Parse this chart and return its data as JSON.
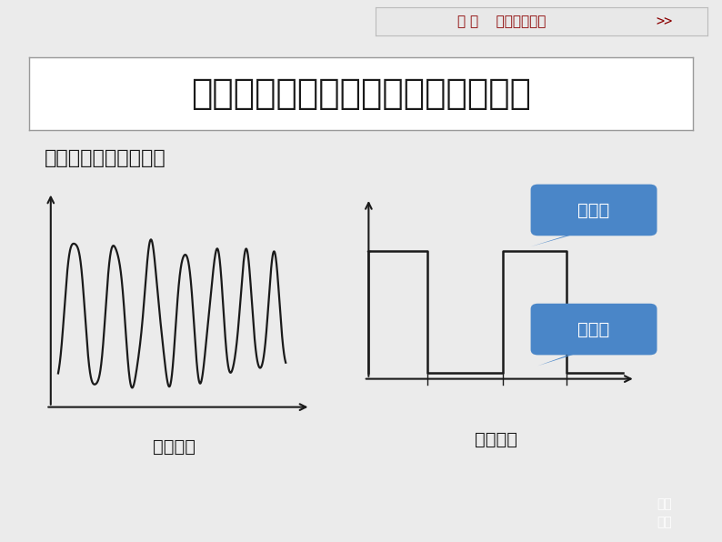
{
  "bg_color": "#ebebeb",
  "title_text": "非连续变化的量可以直接用数字表达",
  "subtitle_text": "表达的方法就是二进制",
  "header_text": "选 修    电子控制技术",
  "label_analog": "模拟信号",
  "label_digital": "数字信号",
  "label_high": "高电平",
  "label_low": "低电平",
  "corner_text1": "栏目",
  "corner_text2": "导引",
  "title_fontsize": 28,
  "subtitle_fontsize": 16,
  "header_fontsize": 11,
  "label_fontsize": 14,
  "annotation_fontsize": 14,
  "title_box_color": "#ffffff",
  "title_text_color": "#1a1a1a",
  "annotation_bg_color": "#4a86c8",
  "annotation_text_color": "#ffffff",
  "line_color": "#1a1a1a",
  "axis_color": "#1a1a1a",
  "header_color": "#8b0000",
  "corner_bg": "#c0392b",
  "corner_text_color": "#ffffff"
}
